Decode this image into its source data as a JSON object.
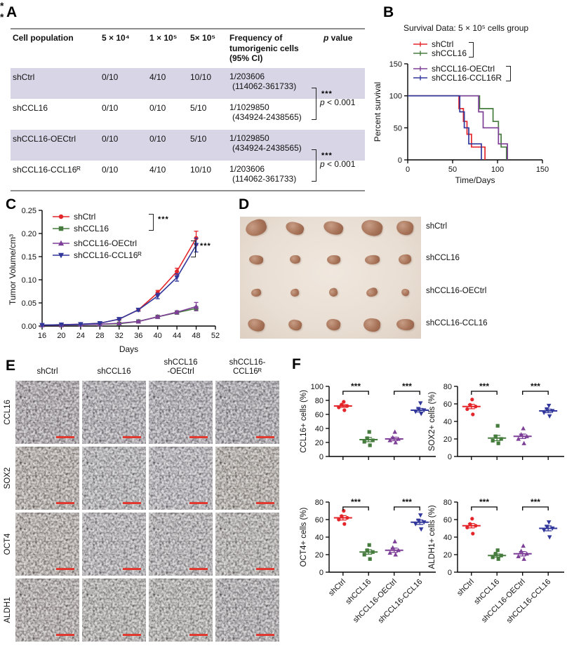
{
  "panels": {
    "a": "A",
    "b": "B",
    "c": "C",
    "d": "D",
    "e": "E",
    "f": "F"
  },
  "colors": {
    "red": "#e4262a",
    "green": "#467c3e",
    "purple": "#7d3f97",
    "blue": "#31379b",
    "table_shade": "#d8d6e6",
    "photo_bg": "#eae0d6",
    "tumor": "#a87459",
    "scale_bar": "#e03a30",
    "axis": "#000000"
  },
  "panelA": {
    "headers": [
      "Cell population",
      "5 × 10⁴",
      "1 × 10⁵",
      "5× 10⁵",
      "Frequency of tumorigenic cells (95% CI)"
    ],
    "p_header": {
      "italic": "p",
      "normal": " value"
    },
    "rows": [
      {
        "population": "shCtrl",
        "d1": "0/10",
        "d2": "4/10",
        "d3": "10/10",
        "freq1": "1/203606",
        "freq2": "(114062-361733)",
        "shaded": true
      },
      {
        "population": "shCCL16",
        "d1": "0/10",
        "d2": "0/10",
        "d3": "5/10",
        "freq1": "1/1029850",
        "freq2": "(434924-2438565)",
        "shaded": false
      },
      {
        "population": "shCCL16-OECtrl",
        "d1": "0/10",
        "d2": "0/10",
        "d3": "5/10",
        "freq1": "1/1029850",
        "freq2": "(434924-2438565)",
        "shaded": true
      },
      {
        "population": "shCCL16-CCL16ᴿ",
        "d1": "0/10",
        "d2": "4/10",
        "d3": "10/10",
        "freq1": "1/203606",
        "freq2": "(114062-361733)",
        "shaded": false
      }
    ],
    "significance": [
      {
        "stars": "***",
        "p_italic": "p",
        "p_rest": " < 0.001"
      },
      {
        "stars": "***",
        "p_italic": "p",
        "p_rest": " < 0.001"
      }
    ]
  },
  "chart_data": [
    {
      "id": "survival",
      "type": "line",
      "subtype": "step",
      "title": "Survival Data: 5 × 10⁵ cells group",
      "xlabel": "Time/Days",
      "ylabel": "Percent survival",
      "xlim": [
        0,
        150
      ],
      "ylim": [
        0,
        150
      ],
      "xticks": [
        0,
        50,
        100,
        150
      ],
      "yticks": [
        0,
        50,
        100,
        150
      ],
      "legend_position": "top-left",
      "grid": false,
      "series": [
        {
          "name": "shCtrl",
          "color": "#e4262a",
          "steps": [
            [
              0,
              100
            ],
            [
              57,
              100
            ],
            [
              57,
              80
            ],
            [
              62,
              80
            ],
            [
              62,
              60
            ],
            [
              66,
              60
            ],
            [
              66,
              40
            ],
            [
              71,
              40
            ],
            [
              71,
              20
            ],
            [
              86,
              20
            ],
            [
              86,
              0
            ]
          ]
        },
        {
          "name": "shCCL16",
          "color": "#467c3e",
          "steps": [
            [
              0,
              100
            ],
            [
              80,
              100
            ],
            [
              80,
              80
            ],
            [
              95,
              80
            ],
            [
              95,
              60
            ],
            [
              101,
              60
            ],
            [
              101,
              40
            ],
            [
              104,
              40
            ],
            [
              104,
              20
            ],
            [
              110,
              20
            ],
            [
              110,
              0
            ]
          ]
        },
        {
          "name": "shCCL16-OECtrl",
          "color": "#7d3f97",
          "steps": [
            [
              0,
              100
            ],
            [
              79,
              100
            ],
            [
              79,
              75
            ],
            [
              84,
              75
            ],
            [
              84,
              50
            ],
            [
              101,
              50
            ],
            [
              101,
              25
            ],
            [
              111,
              25
            ],
            [
              111,
              0
            ]
          ]
        },
        {
          "name": "shCCL16-CCL16R",
          "color": "#31379b",
          "steps": [
            [
              0,
              100
            ],
            [
              58,
              100
            ],
            [
              58,
              75
            ],
            [
              63,
              75
            ],
            [
              63,
              50
            ],
            [
              68,
              50
            ],
            [
              68,
              25
            ],
            [
              82,
              25
            ],
            [
              82,
              0
            ]
          ]
        }
      ],
      "significance": [
        {
          "series": [
            0,
            1
          ],
          "label": "*"
        },
        {
          "series": [
            2,
            3
          ],
          "label": "*"
        }
      ]
    },
    {
      "id": "tumor_volume",
      "type": "line",
      "xlabel": "Days",
      "ylabel": "Tumor Volume/cm³",
      "xlim": [
        16,
        52
      ],
      "ylim": [
        0,
        0.25
      ],
      "xticks": [
        16,
        20,
        24,
        28,
        32,
        36,
        40,
        44,
        48,
        52
      ],
      "yticks": [
        0,
        0.05,
        0.1,
        0.15,
        0.2,
        0.25
      ],
      "x": [
        16,
        20,
        24,
        28,
        32,
        36,
        40,
        44,
        48
      ],
      "legend_position": "top-left",
      "grid": false,
      "series": [
        {
          "name": "shCtrl",
          "color": "#e4262a",
          "marker": "circle",
          "values": [
            0.002,
            0.003,
            0.004,
            0.006,
            0.015,
            0.035,
            0.072,
            0.118,
            0.19
          ],
          "err": [
            0.001,
            0.001,
            0.001,
            0.001,
            0.002,
            0.003,
            0.005,
            0.007,
            0.015
          ]
        },
        {
          "name": "shCCL16",
          "color": "#467c3e",
          "marker": "square",
          "values": [
            0.002,
            0.002,
            0.003,
            0.004,
            0.005,
            0.01,
            0.02,
            0.029,
            0.038
          ],
          "err": [
            0.001,
            0.001,
            0.001,
            0.001,
            0.001,
            0.002,
            0.002,
            0.003,
            0.004
          ]
        },
        {
          "name": "shCCL16-OECtrl",
          "color": "#7d3f97",
          "marker": "triangle",
          "values": [
            0.002,
            0.002,
            0.003,
            0.004,
            0.006,
            0.01,
            0.02,
            0.03,
            0.042
          ],
          "err": [
            0.001,
            0.001,
            0.001,
            0.001,
            0.001,
            0.002,
            0.002,
            0.003,
            0.009
          ]
        },
        {
          "name": "shCCL16-CCL16ᴿ",
          "color": "#31379b",
          "marker": "triangle-down",
          "values": [
            0.002,
            0.003,
            0.004,
            0.006,
            0.015,
            0.035,
            0.065,
            0.105,
            0.175
          ],
          "err": [
            0.001,
            0.001,
            0.001,
            0.001,
            0.002,
            0.003,
            0.006,
            0.008,
            0.015
          ]
        }
      ],
      "significance": [
        {
          "series": [
            0,
            1
          ],
          "label": "***"
        },
        {
          "series": [
            2,
            3
          ],
          "label": "***"
        }
      ]
    },
    {
      "id": "ccl16_cells",
      "type": "scatter",
      "ylabel": "CCL16+ cells (%)",
      "ylim": [
        0,
        100
      ],
      "yticks": [
        0,
        20,
        40,
        60,
        80,
        100
      ],
      "show_xlabels": false,
      "categories": [
        "shCtrl",
        "shCCL16",
        "shCCL16-OECtrl",
        "shCCL16-CCL16"
      ],
      "groups": [
        {
          "name": "shCtrl",
          "color": "#e4262a",
          "marker": "circle",
          "points": [
            66,
            70,
            72,
            74,
            78
          ],
          "mean": 72,
          "sem": 2
        },
        {
          "name": "shCCL16",
          "color": "#467c3e",
          "marker": "square",
          "points": [
            16,
            21,
            23,
            26,
            35
          ],
          "mean": 24,
          "sem": 3
        },
        {
          "name": "shCCL16-OECtrl",
          "color": "#7d3f97",
          "marker": "triangle",
          "points": [
            20,
            23,
            25,
            27,
            35
          ],
          "mean": 25,
          "sem": 2.5
        },
        {
          "name": "shCCL16-CCL16",
          "color": "#31379b",
          "marker": "triangle-down",
          "points": [
            61,
            64,
            66,
            68,
            76
          ],
          "mean": 66,
          "sem": 2.5
        }
      ],
      "significance": [
        {
          "groups": [
            0,
            1
          ],
          "label": "***"
        },
        {
          "groups": [
            2,
            3
          ],
          "label": "***"
        }
      ]
    },
    {
      "id": "sox2_cells",
      "type": "scatter",
      "ylabel": "SOX2+ cells (%)",
      "ylim": [
        0,
        80
      ],
      "yticks": [
        0,
        20,
        40,
        60,
        80
      ],
      "show_xlabels": false,
      "categories": [
        "shCtrl",
        "shCCL16",
        "shCCL16-OECtrl",
        "shCCL16-CCL16"
      ],
      "groups": [
        {
          "name": "shCtrl",
          "color": "#e4262a",
          "marker": "circle",
          "points": [
            48,
            54,
            57,
            59,
            65
          ],
          "mean": 57,
          "sem": 2.5
        },
        {
          "name": "shCCL16",
          "color": "#467c3e",
          "marker": "square",
          "points": [
            15,
            18,
            20,
            23,
            35
          ],
          "mean": 21,
          "sem": 3
        },
        {
          "name": "shCCL16-OECtrl",
          "color": "#7d3f97",
          "marker": "triangle",
          "points": [
            15,
            20,
            23,
            25,
            32
          ],
          "mean": 23,
          "sem": 2.5
        },
        {
          "name": "shCCL16-CCL16",
          "color": "#31379b",
          "marker": "triangle-down",
          "points": [
            46,
            50,
            52,
            54,
            58
          ],
          "mean": 52,
          "sem": 2
        }
      ],
      "significance": [
        {
          "groups": [
            0,
            1
          ],
          "label": "***"
        },
        {
          "groups": [
            2,
            3
          ],
          "label": "***"
        }
      ]
    },
    {
      "id": "oct4_cells",
      "type": "scatter",
      "ylabel": "OCT4+ cells (%)",
      "ylim": [
        0,
        80
      ],
      "yticks": [
        0,
        20,
        40,
        60,
        80
      ],
      "show_xlabels": true,
      "categories": [
        "shCtrl",
        "shCCL16",
        "shCCL16-OECtrl",
        "shCCL16-CCL16"
      ],
      "groups": [
        {
          "name": "shCtrl",
          "color": "#e4262a",
          "marker": "circle",
          "points": [
            55,
            60,
            62,
            64,
            70
          ],
          "mean": 62,
          "sem": 2.5
        },
        {
          "name": "shCCL16",
          "color": "#467c3e",
          "marker": "square",
          "points": [
            15,
            20,
            23,
            25,
            31
          ],
          "mean": 23,
          "sem": 2.5
        },
        {
          "name": "shCCL16-OECtrl",
          "color": "#7d3f97",
          "marker": "triangle",
          "points": [
            20,
            22,
            25,
            28,
            35
          ],
          "mean": 25,
          "sem": 2.5
        },
        {
          "name": "shCCL16-CCL16",
          "color": "#31379b",
          "marker": "triangle-down",
          "points": [
            49,
            55,
            57,
            59,
            65
          ],
          "mean": 57,
          "sem": 2.5
        }
      ],
      "significance": [
        {
          "groups": [
            0,
            1
          ],
          "label": "***"
        },
        {
          "groups": [
            2,
            3
          ],
          "label": "***"
        }
      ]
    },
    {
      "id": "aldh1_cells",
      "type": "scatter",
      "ylabel": "ALDH1+ cells (%)",
      "ylim": [
        0,
        80
      ],
      "yticks": [
        0,
        20,
        40,
        60,
        80
      ],
      "show_xlabels": true,
      "categories": [
        "shCtrl",
        "shCCL16",
        "shCCL16-OECtrl",
        "shCCL16-CCL16"
      ],
      "groups": [
        {
          "name": "shCtrl",
          "color": "#e4262a",
          "marker": "circle",
          "points": [
            44,
            51,
            53,
            55,
            61
          ],
          "mean": 53,
          "sem": 2.5
        },
        {
          "name": "shCCL16",
          "color": "#467c3e",
          "marker": "square",
          "points": [
            15,
            17,
            19,
            21,
            25
          ],
          "mean": 19,
          "sem": 1.8
        },
        {
          "name": "shCCL16-OECtrl",
          "color": "#7d3f97",
          "marker": "triangle",
          "points": [
            15,
            18,
            21,
            24,
            30
          ],
          "mean": 21,
          "sem": 2.5
        },
        {
          "name": "shCCL16-CCL16",
          "color": "#31379b",
          "marker": "triangle-down",
          "points": [
            40,
            48,
            50,
            52,
            57
          ],
          "mean": 50,
          "sem": 2.8
        }
      ],
      "significance": [
        {
          "groups": [
            0,
            1
          ],
          "label": "***"
        },
        {
          "groups": [
            2,
            3
          ],
          "label": "***"
        }
      ]
    }
  ],
  "panelD": {
    "rows": [
      {
        "label": "shCtrl",
        "sizes": [
          [
            30,
            22
          ],
          [
            26,
            17
          ],
          [
            28,
            18
          ],
          [
            30,
            22
          ],
          [
            24,
            20
          ]
        ]
      },
      {
        "label": "shCCL16",
        "sizes": [
          [
            20,
            13
          ],
          [
            15,
            12
          ],
          [
            19,
            13
          ],
          [
            21,
            13
          ],
          [
            18,
            14
          ]
        ]
      },
      {
        "label": "shCCL16-OECtrl",
        "sizes": [
          [
            14,
            11
          ],
          [
            12,
            11
          ],
          [
            12,
            12
          ],
          [
            16,
            12
          ],
          [
            11,
            10
          ]
        ]
      },
      {
        "label": "shCCL16-CCL16",
        "sizes": [
          [
            24,
            17
          ],
          [
            19,
            15
          ],
          [
            20,
            16
          ],
          [
            24,
            19
          ],
          [
            25,
            16
          ]
        ]
      }
    ]
  },
  "panelE": {
    "col_headers": [
      "shCtrl",
      "shCCL16",
      "shCCL16\n-OECtrl",
      "shCCL16-\nCCL16ᴿ"
    ],
    "row_labels": [
      "CCL16",
      "SOX2",
      "OCT4",
      "ALDH1"
    ],
    "cell_colors": [
      [
        "#80667f",
        "#94829b",
        "#8c7f9b",
        "#83718c"
      ],
      [
        "#9c8470",
        "#a39da9",
        "#a79fb2",
        "#9f8a71"
      ],
      [
        "#a18a7b",
        "#a49ca8",
        "#a2979f",
        "#a69a92"
      ],
      [
        "#99837d",
        "#a09894",
        "#a39b94",
        "#93828e"
      ]
    ]
  }
}
